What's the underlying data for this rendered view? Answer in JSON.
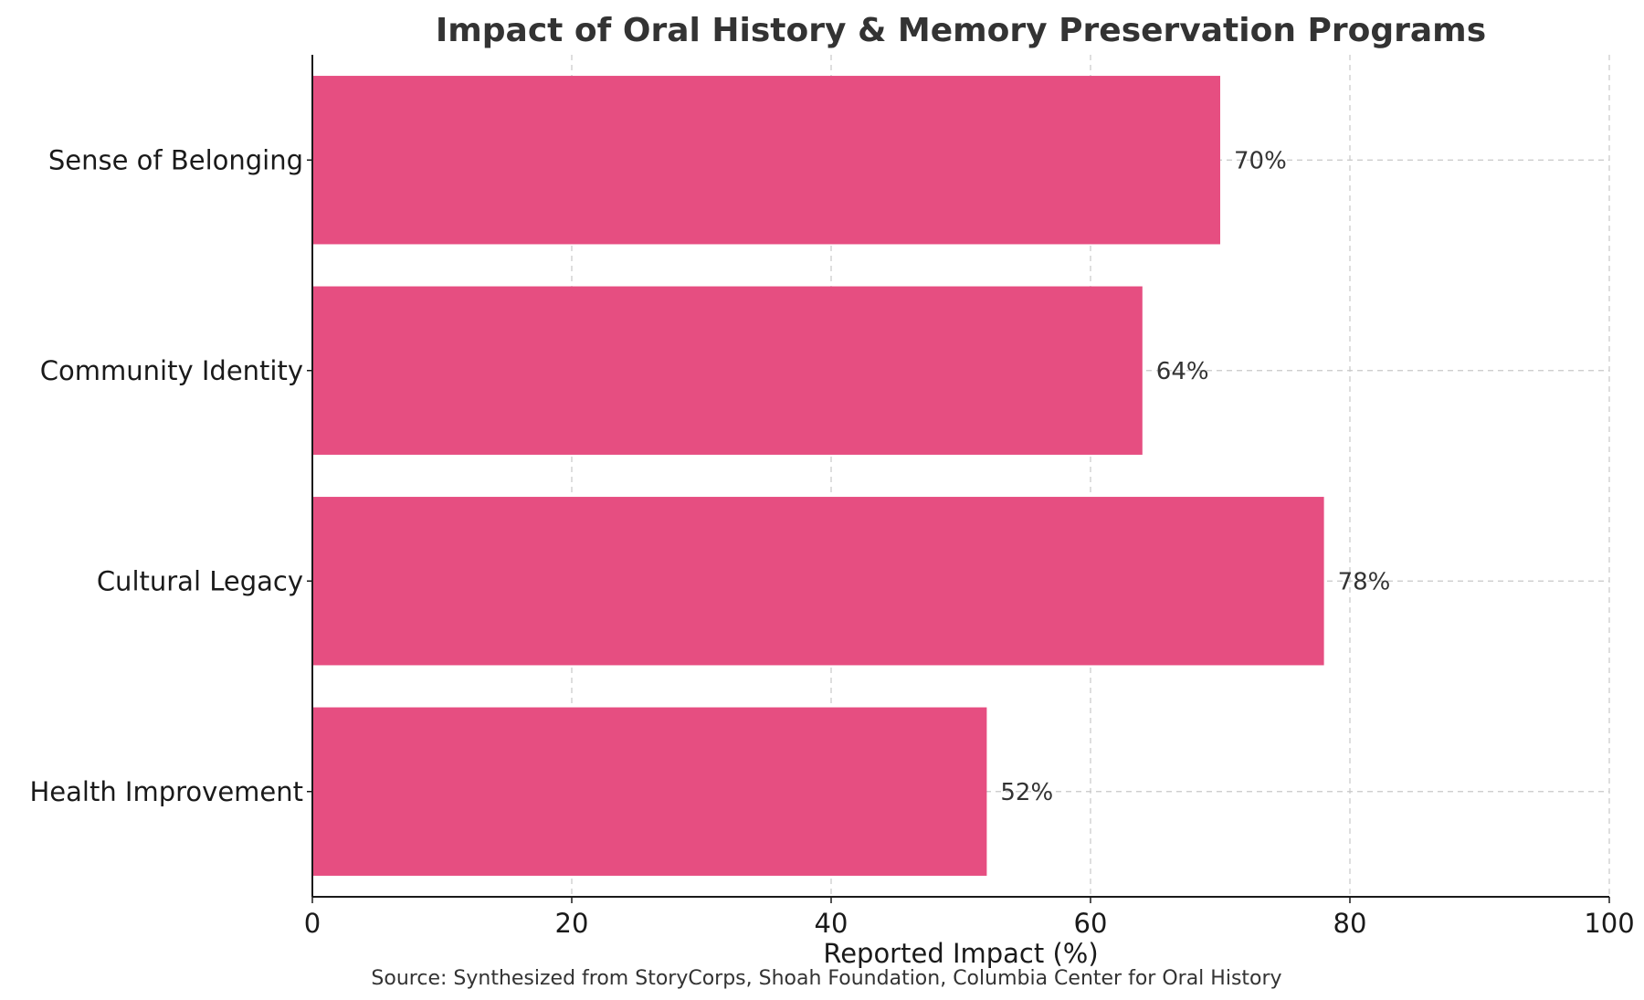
{
  "chart_data": {
    "type": "bar",
    "orientation": "horizontal",
    "title": "Impact of Oral History & Memory Preservation Programs",
    "xlabel": "Reported Impact (%)",
    "ylabel": "",
    "source": "Source: Synthesized from StoryCorps, Shoah Foundation, Columbia Center for Oral History",
    "categories": [
      "Sense of Belonging",
      "Community Identity",
      "Cultural Legacy",
      "Health Improvement"
    ],
    "values": [
      70,
      64,
      78,
      52
    ],
    "value_labels": [
      "70%",
      "64%",
      "78%",
      "52%"
    ],
    "xlim": [
      0,
      100
    ],
    "xticks": [
      0,
      20,
      40,
      60,
      80,
      100
    ],
    "xtick_labels": [
      "0",
      "20",
      "40",
      "60",
      "80",
      "100"
    ],
    "grid": true,
    "legend": "none",
    "bar_color": "#e64e81"
  }
}
